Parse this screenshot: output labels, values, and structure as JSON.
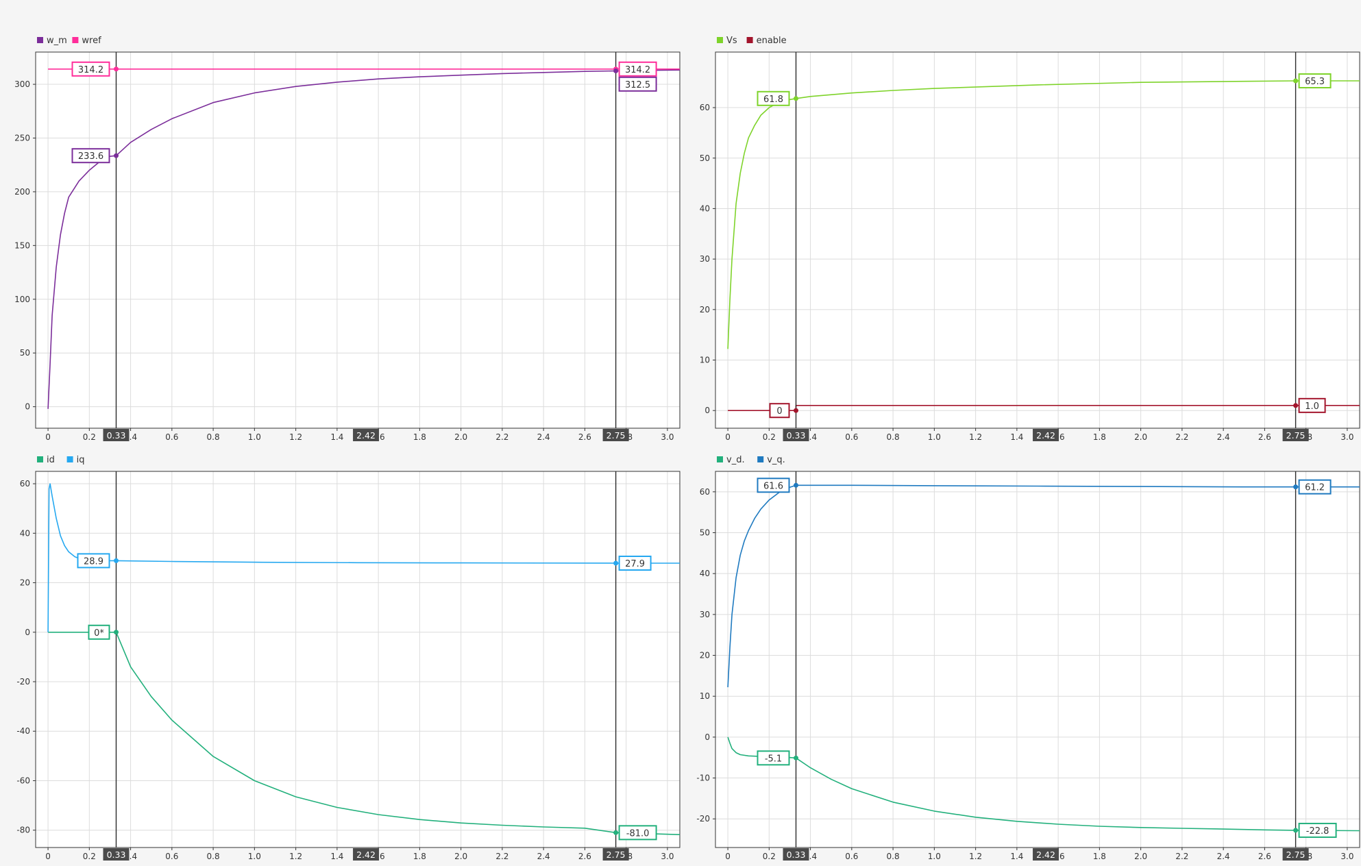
{
  "chart_data": [
    {
      "type": "line",
      "legend_position": "top-left",
      "grid": true,
      "xlim": [
        -0.06,
        3.06
      ],
      "ylim": [
        -20,
        330
      ],
      "xticks": [
        0,
        0.2,
        0.4,
        0.6,
        0.8,
        1.0,
        1.2,
        1.4,
        1.6,
        1.8,
        2.0,
        2.2,
        2.4,
        2.6,
        2.8,
        3.0
      ],
      "xtick_labels": [
        "0",
        "0.2",
        "0.4",
        "0.6",
        "0.8",
        "1.0",
        "1.2",
        "1.4",
        "1.6",
        "1.8",
        "2.0",
        "2.2",
        "2.4",
        "2.6",
        "2.8",
        "3.0"
      ],
      "yticks": [
        0,
        50,
        100,
        150,
        200,
        250,
        300
      ],
      "ytick_labels": [
        "0",
        "50",
        "100",
        "150",
        "200",
        "250",
        "300"
      ],
      "series": [
        {
          "name": "w_m",
          "color": "#7b2d9a",
          "x": [
            0,
            0.01,
            0.02,
            0.04,
            0.06,
            0.08,
            0.1,
            0.15,
            0.2,
            0.25,
            0.3,
            0.33,
            0.4,
            0.5,
            0.6,
            0.8,
            1.0,
            1.2,
            1.4,
            1.6,
            1.8,
            2.0,
            2.2,
            2.4,
            2.6,
            2.75,
            2.9,
            3.06
          ],
          "y": [
            -2,
            40,
            85,
            130,
            160,
            180,
            195,
            210,
            220,
            228,
            233,
            233.6,
            246,
            258,
            268,
            283,
            292,
            298,
            302,
            305,
            307,
            308.5,
            310,
            311,
            312,
            312.5,
            313,
            313.3
          ]
        },
        {
          "name": "wref",
          "color": "#ff2d9a",
          "x": [
            0,
            3.06
          ],
          "y": [
            314.2,
            314.2
          ]
        }
      ],
      "cursor_values": [
        {
          "series": "wref",
          "x": 0.33,
          "y": 314.2,
          "label": "314.2"
        },
        {
          "series": "w_m",
          "x": 0.33,
          "y": 233.6,
          "label": "233.6"
        },
        {
          "series": "wref",
          "x": 2.75,
          "y": 314.2,
          "label": "314.2"
        },
        {
          "series": "w_m",
          "x": 2.75,
          "y": 312.5,
          "label": "312.5"
        }
      ]
    },
    {
      "type": "line",
      "legend_position": "top-left",
      "grid": true,
      "xlim": [
        -0.06,
        3.06
      ],
      "ylim": [
        -3.5,
        71
      ],
      "xticks": [
        0,
        0.2,
        0.4,
        0.6,
        0.8,
        1.0,
        1.2,
        1.4,
        1.6,
        1.8,
        2.0,
        2.2,
        2.4,
        2.6,
        2.8,
        3.0
      ],
      "xtick_labels": [
        "0",
        "0.2",
        "0.4",
        "0.6",
        "0.8",
        "1.0",
        "1.2",
        "1.4",
        "1.6",
        "1.8",
        "2.0",
        "2.2",
        "2.4",
        "2.6",
        "2.8",
        "3.0"
      ],
      "yticks": [
        0,
        10,
        20,
        30,
        40,
        50,
        60
      ],
      "ytick_labels": [
        "0",
        "10",
        "20",
        "30",
        "40",
        "50",
        "60"
      ],
      "series": [
        {
          "name": "Vs",
          "color": "#7ed32a",
          "x": [
            0,
            0.01,
            0.02,
            0.04,
            0.06,
            0.08,
            0.1,
            0.13,
            0.16,
            0.2,
            0.25,
            0.3,
            0.33,
            0.4,
            0.6,
            0.8,
            1.0,
            1.5,
            2.0,
            2.5,
            2.75,
            3.06
          ],
          "y": [
            12.2,
            22,
            30,
            41,
            47,
            51,
            54,
            56.5,
            58.5,
            60,
            61.1,
            61.6,
            61.8,
            62.2,
            62.9,
            63.4,
            63.8,
            64.5,
            65,
            65.2,
            65.3,
            65.3
          ]
        },
        {
          "name": "enable",
          "color": "#a3152c",
          "x": [
            0,
            0.33,
            0.33,
            3.06
          ],
          "y": [
            0,
            0,
            1,
            1
          ]
        }
      ],
      "cursor_values": [
        {
          "series": "Vs",
          "x": 0.33,
          "y": 61.8,
          "label": "61.8"
        },
        {
          "series": "enable",
          "x": 0.33,
          "y": 0,
          "label": "0"
        },
        {
          "series": "Vs",
          "x": 2.75,
          "y": 65.3,
          "label": "65.3"
        },
        {
          "series": "enable",
          "x": 2.75,
          "y": 1.0,
          "label": "1.0"
        }
      ]
    },
    {
      "type": "line",
      "legend_position": "top-left",
      "grid": true,
      "xlim": [
        -0.06,
        3.06
      ],
      "ylim": [
        -87,
        65
      ],
      "xticks": [
        0,
        0.2,
        0.4,
        0.6,
        0.8,
        1.0,
        1.2,
        1.4,
        1.6,
        1.8,
        2.0,
        2.2,
        2.4,
        2.6,
        2.8,
        3.0
      ],
      "xtick_labels": [
        "0",
        "0.2",
        "0.4",
        "0.6",
        "0.8",
        "1.0",
        "1.2",
        "1.4",
        "1.6",
        "1.8",
        "2.0",
        "2.2",
        "2.4",
        "2.6",
        "2.8",
        "3.0"
      ],
      "yticks": [
        -80,
        -60,
        -40,
        -20,
        0,
        20,
        40,
        60
      ],
      "ytick_labels": [
        "-80",
        "-60",
        "-40",
        "-20",
        "0",
        "20",
        "40",
        "60"
      ],
      "series": [
        {
          "name": "id",
          "color": "#22b07c",
          "x": [
            0,
            0.33,
            0.4,
            0.5,
            0.6,
            0.8,
            1.0,
            1.2,
            1.4,
            1.6,
            1.8,
            2.0,
            2.2,
            2.4,
            2.6,
            2.75,
            3.06
          ],
          "y": [
            0,
            0,
            -14,
            -26,
            -35.5,
            -50.2,
            -60,
            -66.5,
            -70.8,
            -73.7,
            -75.7,
            -77.1,
            -78,
            -78.7,
            -79.2,
            -81.0,
            -81.8
          ]
        },
        {
          "name": "iq",
          "color": "#25a8f0",
          "x": [
            0,
            0.005,
            0.01,
            0.02,
            0.04,
            0.06,
            0.08,
            0.1,
            0.13,
            0.16,
            0.2,
            0.25,
            0.33,
            0.6,
            1.0,
            1.5,
            2.0,
            2.75,
            3.06
          ],
          "y": [
            0,
            58,
            60,
            55,
            46,
            39,
            35,
            32.5,
            30.5,
            29.5,
            29,
            28.9,
            28.9,
            28.6,
            28.3,
            28.1,
            28.0,
            27.9,
            27.9
          ]
        }
      ],
      "cursor_values": [
        {
          "series": "iq",
          "x": 0.33,
          "y": 28.9,
          "label": "28.9"
        },
        {
          "series": "id",
          "x": 0.33,
          "y": 0,
          "label": "0*"
        },
        {
          "series": "iq",
          "x": 2.75,
          "y": 27.9,
          "label": "27.9"
        },
        {
          "series": "id",
          "x": 2.75,
          "y": -81.0,
          "label": "-81.0"
        }
      ]
    },
    {
      "type": "line",
      "legend_position": "top-left",
      "grid": true,
      "xlim": [
        -0.06,
        3.06
      ],
      "ylim": [
        -27,
        65
      ],
      "xticks": [
        0,
        0.2,
        0.4,
        0.6,
        0.8,
        1.0,
        1.2,
        1.4,
        1.6,
        1.8,
        2.0,
        2.2,
        2.4,
        2.6,
        2.8,
        3.0
      ],
      "xtick_labels": [
        "0",
        "0.2",
        "0.4",
        "0.6",
        "0.8",
        "1.0",
        "1.2",
        "1.4",
        "1.6",
        "1.8",
        "2.0",
        "2.2",
        "2.4",
        "2.6",
        "2.8",
        "3.0"
      ],
      "yticks": [
        -20,
        -10,
        0,
        10,
        20,
        30,
        40,
        50,
        60
      ],
      "ytick_labels": [
        "-20",
        "-10",
        "0",
        "10",
        "20",
        "30",
        "40",
        "50",
        "60"
      ],
      "series": [
        {
          "name": "v_d.",
          "color": "#22b07c",
          "x": [
            0,
            0.01,
            0.02,
            0.04,
            0.06,
            0.1,
            0.15,
            0.2,
            0.25,
            0.3,
            0.33,
            0.4,
            0.5,
            0.6,
            0.8,
            1.0,
            1.2,
            1.4,
            1.6,
            1.8,
            2.0,
            2.2,
            2.4,
            2.6,
            2.75,
            3.06
          ],
          "y": [
            0,
            -1.5,
            -2.8,
            -3.8,
            -4.3,
            -4.6,
            -4.7,
            -4.8,
            -4.9,
            -5.0,
            -5.1,
            -7.5,
            -10.3,
            -12.6,
            -15.9,
            -18.1,
            -19.6,
            -20.6,
            -21.3,
            -21.8,
            -22.1,
            -22.3,
            -22.5,
            -22.7,
            -22.8,
            -22.9
          ]
        },
        {
          "name": "v_q.",
          "color": "#1f7ac0",
          "x": [
            0,
            0.01,
            0.02,
            0.04,
            0.06,
            0.08,
            0.1,
            0.13,
            0.16,
            0.2,
            0.25,
            0.3,
            0.33,
            0.6,
            1.0,
            1.5,
            2.0,
            2.5,
            2.75,
            3.06
          ],
          "y": [
            12.2,
            22,
            30,
            39,
            44.5,
            48,
            50.5,
            53.5,
            55.8,
            58,
            59.9,
            61.1,
            61.6,
            61.6,
            61.5,
            61.4,
            61.3,
            61.2,
            61.2,
            61.2
          ]
        }
      ],
      "cursor_values": [
        {
          "series": "v_q.",
          "x": 0.33,
          "y": 61.6,
          "label": "61.6"
        },
        {
          "series": "v_d.",
          "x": 0.33,
          "y": -5.1,
          "label": "-5.1"
        },
        {
          "series": "v_q.",
          "x": 2.75,
          "y": 61.2,
          "label": "61.2"
        },
        {
          "series": "v_d.",
          "x": 2.75,
          "y": -22.8,
          "label": "-22.8"
        }
      ]
    }
  ],
  "cursors": {
    "t1": 0.33,
    "t1_label": "0.33",
    "t2": 2.75,
    "t2_label": "2.75",
    "delta": 2.42,
    "delta_label": "2.42"
  }
}
